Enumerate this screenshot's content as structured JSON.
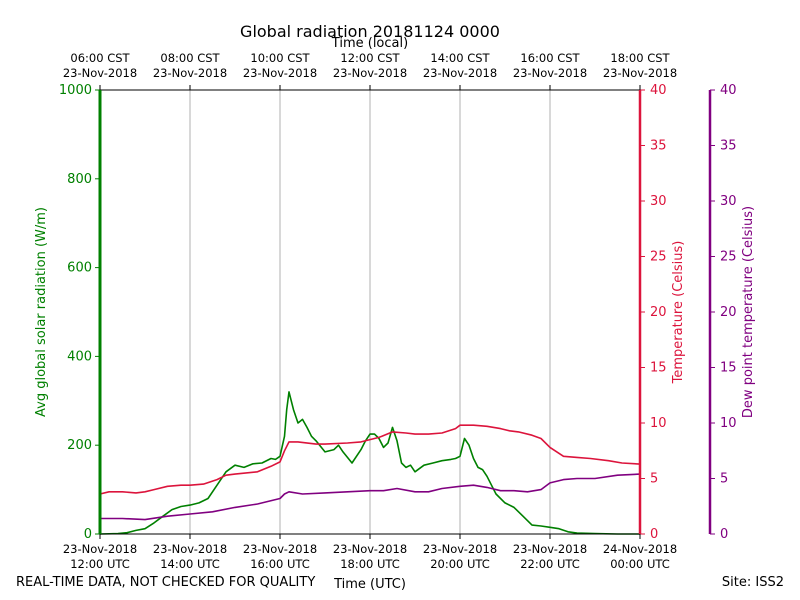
{
  "chart_data": {
    "type": "line",
    "title": "Global radiation 20181124 0000",
    "top_xlabel": "Time (local)",
    "xlabel": "Time (UTC)",
    "x_range_hours_utc": [
      12,
      24
    ],
    "top_ticks": [
      {
        "hour": 12,
        "line1": "06:00 CST",
        "line2": "23-Nov-2018"
      },
      {
        "hour": 14,
        "line1": "08:00 CST",
        "line2": "23-Nov-2018"
      },
      {
        "hour": 16,
        "line1": "10:00 CST",
        "line2": "23-Nov-2018"
      },
      {
        "hour": 18,
        "line1": "12:00 CST",
        "line2": "23-Nov-2018"
      },
      {
        "hour": 20,
        "line1": "14:00 CST",
        "line2": "23-Nov-2018"
      },
      {
        "hour": 22,
        "line1": "16:00 CST",
        "line2": "23-Nov-2018"
      },
      {
        "hour": 24,
        "line1": "18:00 CST",
        "line2": "23-Nov-2018"
      }
    ],
    "bottom_ticks": [
      {
        "hour": 12,
        "line1": "23-Nov-2018",
        "line2": "12:00 UTC"
      },
      {
        "hour": 14,
        "line1": "23-Nov-2018",
        "line2": "14:00 UTC"
      },
      {
        "hour": 16,
        "line1": "23-Nov-2018",
        "line2": "16:00 UTC"
      },
      {
        "hour": 18,
        "line1": "23-Nov-2018",
        "line2": "18:00 UTC"
      },
      {
        "hour": 20,
        "line1": "23-Nov-2018",
        "line2": "20:00 UTC"
      },
      {
        "hour": 22,
        "line1": "23-Nov-2018",
        "line2": "22:00 UTC"
      },
      {
        "hour": 24,
        "line1": "24-Nov-2018",
        "line2": "00:00 UTC"
      }
    ],
    "axes": {
      "radiation": {
        "label": "Avg global solar radiation (W/m)",
        "range": [
          0,
          1000
        ],
        "ticks": [
          0,
          200,
          400,
          600,
          800,
          1000
        ],
        "color": "#008000"
      },
      "temperature": {
        "label": "Temperature (Celsius)",
        "range": [
          0,
          40
        ],
        "ticks": [
          0,
          5,
          10,
          15,
          20,
          25,
          30,
          35,
          40
        ],
        "color": "#dc143c"
      },
      "dewpoint": {
        "label": "Dew point temperature (Celsius)",
        "range": [
          0,
          40
        ],
        "ticks": [
          0,
          5,
          10,
          15,
          20,
          25,
          30,
          35,
          40
        ],
        "color": "#800080"
      }
    },
    "series": [
      {
        "name": "Avg global solar radiation",
        "axis": "radiation",
        "color": "#008000",
        "x": [
          12.0,
          12.4,
          12.6,
          12.8,
          13.0,
          13.2,
          13.4,
          13.6,
          13.8,
          14.0,
          14.2,
          14.4,
          14.6,
          14.8,
          15.0,
          15.2,
          15.4,
          15.6,
          15.8,
          15.9,
          16.0,
          16.1,
          16.15,
          16.2,
          16.3,
          16.4,
          16.5,
          16.6,
          16.7,
          16.8,
          17.0,
          17.2,
          17.3,
          17.4,
          17.6,
          17.8,
          17.9,
          18.0,
          18.1,
          18.2,
          18.3,
          18.4,
          18.5,
          18.6,
          18.7,
          18.8,
          18.9,
          19.0,
          19.2,
          19.4,
          19.6,
          19.8,
          19.9,
          20.0,
          20.1,
          20.2,
          20.3,
          20.4,
          20.5,
          20.6,
          20.7,
          20.8,
          21.0,
          21.2,
          21.4,
          21.6,
          21.8,
          22.0,
          22.2,
          22.4,
          22.6,
          23.0,
          23.5,
          24.0
        ],
        "values": [
          0,
          1,
          3,
          8,
          12,
          25,
          40,
          55,
          62,
          65,
          70,
          80,
          110,
          140,
          155,
          150,
          158,
          160,
          170,
          168,
          175,
          220,
          280,
          320,
          280,
          250,
          258,
          240,
          220,
          210,
          185,
          190,
          200,
          185,
          160,
          190,
          210,
          225,
          225,
          215,
          195,
          205,
          240,
          210,
          160,
          150,
          155,
          140,
          155,
          160,
          165,
          168,
          170,
          175,
          215,
          200,
          170,
          150,
          145,
          130,
          110,
          90,
          70,
          60,
          40,
          20,
          18,
          15,
          12,
          5,
          2,
          1,
          0,
          0
        ]
      },
      {
        "name": "Temperature",
        "axis": "temperature",
        "color": "#dc143c",
        "x": [
          12.0,
          12.2,
          12.5,
          12.8,
          13.0,
          13.2,
          13.5,
          13.8,
          14.0,
          14.3,
          14.6,
          14.8,
          15.0,
          15.5,
          15.8,
          16.0,
          16.1,
          16.2,
          16.4,
          16.8,
          17.0,
          17.5,
          17.8,
          18.0,
          18.2,
          18.5,
          18.8,
          19.0,
          19.3,
          19.6,
          19.9,
          20.0,
          20.3,
          20.6,
          20.9,
          21.1,
          21.3,
          21.6,
          21.8,
          22.0,
          22.3,
          22.6,
          22.9,
          23.3,
          23.6,
          24.0
        ],
        "values": [
          3.6,
          3.8,
          3.8,
          3.7,
          3.8,
          4.0,
          4.3,
          4.4,
          4.4,
          4.5,
          4.9,
          5.3,
          5.4,
          5.6,
          6.1,
          6.5,
          7.5,
          8.3,
          8.3,
          8.1,
          8.1,
          8.2,
          8.3,
          8.5,
          8.7,
          9.2,
          9.1,
          9.0,
          9.0,
          9.1,
          9.5,
          9.8,
          9.8,
          9.7,
          9.5,
          9.3,
          9.2,
          8.9,
          8.6,
          7.8,
          7.0,
          6.9,
          6.8,
          6.6,
          6.4,
          6.3
        ]
      },
      {
        "name": "Dew point temperature",
        "axis": "dewpoint",
        "color": "#800080",
        "x": [
          12.0,
          12.5,
          13.0,
          13.5,
          14.0,
          14.5,
          15.0,
          15.5,
          16.0,
          16.1,
          16.2,
          16.5,
          17.0,
          17.5,
          18.0,
          18.3,
          18.6,
          19.0,
          19.3,
          19.6,
          20.0,
          20.3,
          20.6,
          20.9,
          21.2,
          21.5,
          21.8,
          22.0,
          22.3,
          22.6,
          23.0,
          23.5,
          24.0
        ],
        "values": [
          1.4,
          1.4,
          1.3,
          1.6,
          1.8,
          2.0,
          2.4,
          2.7,
          3.2,
          3.6,
          3.8,
          3.6,
          3.7,
          3.8,
          3.9,
          3.9,
          4.1,
          3.8,
          3.8,
          4.1,
          4.3,
          4.4,
          4.2,
          3.9,
          3.9,
          3.8,
          4.0,
          4.6,
          4.9,
          5.0,
          5.0,
          5.3,
          5.4
        ]
      }
    ]
  },
  "footer": {
    "left": "REAL-TIME DATA, NOT CHECKED FOR QUALITY",
    "right": "Site: ISS2"
  }
}
